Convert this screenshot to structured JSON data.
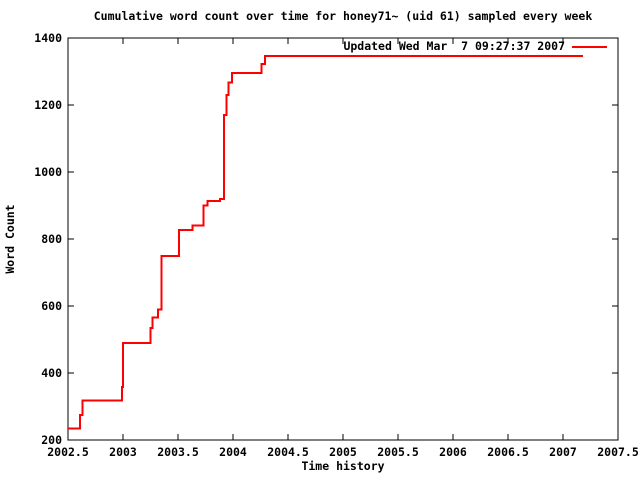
{
  "title": "Cumulative word count over time for honey71~ (uid 61) sampled every week",
  "legend": {
    "label": "Updated Wed Mar  7 09:27:37 2007",
    "position": "top-right-inside"
  },
  "axes": {
    "xlabel": "Time history",
    "ylabel": "Word Count",
    "xlim": [
      2002.5,
      2007.5
    ],
    "ylim": [
      200,
      1400
    ],
    "xtick_values": [
      2002.5,
      2003,
      2003.5,
      2004,
      2004.5,
      2005,
      2005.5,
      2006,
      2006.5,
      2007,
      2007.5
    ],
    "xtick_labels": [
      "2002.5",
      "2003",
      "2003.5",
      "2004",
      "2004.5",
      "2005",
      "2005.5",
      "2006",
      "2006.5",
      "2007",
      "2007.5"
    ],
    "ytick_values": [
      200,
      400,
      600,
      800,
      1000,
      1200,
      1400
    ],
    "ytick_labels": [
      "200",
      "400",
      "600",
      "800",
      "1000",
      "1200",
      "1400"
    ]
  },
  "colors": {
    "line": "#ff0000",
    "axis": "#000000",
    "background": "#ffffff"
  },
  "chart_data": {
    "type": "line",
    "style": "steps-pre",
    "title": "Cumulative word count over time for honey71~ (uid 61) sampled every week",
    "xlabel": "Time history",
    "ylabel": "Word Count",
    "xlim": [
      2002.5,
      2007.5
    ],
    "ylim": [
      200,
      1400
    ],
    "grid": false,
    "legend_position": "top-right-inside",
    "series": [
      {
        "name": "Updated Wed Mar  7 09:27:37 2007",
        "color": "#ff0000",
        "points": [
          [
            2002.5,
            235
          ],
          [
            2002.61,
            275
          ],
          [
            2002.63,
            318
          ],
          [
            2002.99,
            358
          ],
          [
            2003.0,
            490
          ],
          [
            2003.25,
            535
          ],
          [
            2003.27,
            565
          ],
          [
            2003.32,
            590
          ],
          [
            2003.35,
            750
          ],
          [
            2003.51,
            827
          ],
          [
            2003.63,
            840
          ],
          [
            2003.73,
            900
          ],
          [
            2003.77,
            913
          ],
          [
            2003.88,
            920
          ],
          [
            2003.92,
            1170
          ],
          [
            2003.94,
            1230
          ],
          [
            2003.96,
            1267
          ],
          [
            2003.99,
            1296
          ],
          [
            2004.26,
            1323
          ],
          [
            2004.29,
            1346
          ],
          [
            2007.18,
            1346
          ]
        ]
      }
    ]
  }
}
